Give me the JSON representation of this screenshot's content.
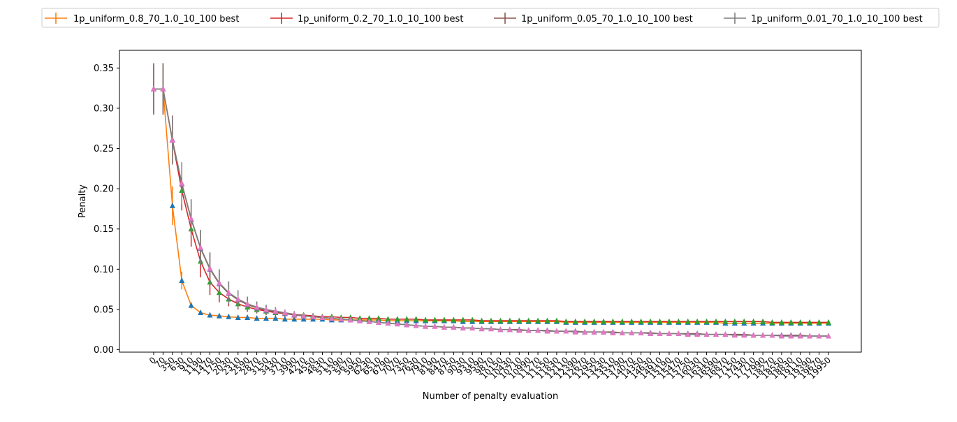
{
  "chart_data": {
    "type": "line",
    "title": "",
    "xlabel": "Number of penalty evaluation",
    "ylabel": "Penalty",
    "ylim": [
      -0.003,
      0.372
    ],
    "yticks": [
      0.0,
      0.05,
      0.1,
      0.15,
      0.2,
      0.25,
      0.3,
      0.35
    ],
    "ytick_labels": [
      "0.00",
      "0.05",
      "0.10",
      "0.15",
      "0.20",
      "0.25",
      "0.30",
      "0.35"
    ],
    "grid": false,
    "legend_position": "top",
    "x": [
      0,
      70,
      350,
      630,
      910,
      1190,
      1470,
      1750,
      2030,
      2310,
      2590,
      2870,
      3150,
      3430,
      3710,
      3990,
      4270,
      4550,
      4830,
      5110,
      5390,
      5670,
      5950,
      6230,
      6510,
      6790,
      7070,
      7350,
      7630,
      7910,
      8190,
      8470,
      8750,
      9030,
      9310,
      9590,
      9870,
      10150,
      10430,
      10710,
      10990,
      11270,
      11550,
      11830,
      12110,
      12390,
      12670,
      12950,
      13230,
      13510,
      13790,
      14070,
      14350,
      14630,
      14910,
      15190,
      15470,
      15750,
      16030,
      16310,
      16590,
      16870,
      17150,
      17430,
      17710,
      17990,
      18270,
      18550,
      18830,
      19110,
      19390,
      19670,
      19950
    ],
    "series": [
      {
        "name": "1p_uniform_0.8_70_1.0_10_100 best",
        "color": "#ff7f0e",
        "marker_color": "#1f77b4",
        "values": [
          0.324,
          0.324,
          0.179,
          0.086,
          0.055,
          0.046,
          0.043,
          0.042,
          0.041,
          0.04,
          0.04,
          0.039,
          0.039,
          0.039,
          0.038,
          0.038,
          0.038,
          0.038,
          0.038,
          0.037,
          0.037,
          0.037,
          0.037,
          0.037,
          0.037,
          0.036,
          0.036,
          0.036,
          0.036,
          0.036,
          0.036,
          0.036,
          0.036,
          0.035,
          0.035,
          0.035,
          0.035,
          0.035,
          0.035,
          0.035,
          0.035,
          0.035,
          0.035,
          0.035,
          0.034,
          0.034,
          0.034,
          0.034,
          0.034,
          0.034,
          0.034,
          0.034,
          0.034,
          0.034,
          0.034,
          0.034,
          0.034,
          0.034,
          0.034,
          0.034,
          0.034,
          0.033,
          0.033,
          0.033,
          0.033,
          0.033,
          0.033,
          0.033,
          0.033,
          0.033,
          0.033,
          0.033,
          0.033
        ],
        "errors": [
          0.03,
          0.03,
          0.024,
          0.011,
          0.004,
          0.003,
          0.003,
          0.003,
          0.003,
          0.003,
          0.003,
          0.003,
          0.003,
          0.003,
          0.003,
          0.003,
          0.002,
          0.002,
          0.002,
          0.002,
          0.002,
          0.002,
          0.002,
          0.002,
          0.002,
          0.002,
          0.002,
          0.002,
          0.002,
          0.002,
          0.002,
          0.002,
          0.002,
          0.002,
          0.002,
          0.002,
          0.002,
          0.002,
          0.002,
          0.002,
          0.002,
          0.002,
          0.002,
          0.002,
          0.002,
          0.002,
          0.002,
          0.002,
          0.002,
          0.002,
          0.002,
          0.002,
          0.002,
          0.002,
          0.002,
          0.002,
          0.002,
          0.002,
          0.002,
          0.002,
          0.002,
          0.002,
          0.002,
          0.002,
          0.002,
          0.002,
          0.002,
          0.002,
          0.002,
          0.002,
          0.002,
          0.002,
          0.002
        ]
      },
      {
        "name": "1p_uniform_0.2_70_1.0_10_100 best",
        "color": "#d62728",
        "marker_color": "#2ca02c",
        "values": [
          0.324,
          0.324,
          0.26,
          0.198,
          0.15,
          0.11,
          0.084,
          0.071,
          0.063,
          0.057,
          0.053,
          0.05,
          0.048,
          0.046,
          0.045,
          0.044,
          0.043,
          0.042,
          0.041,
          0.041,
          0.04,
          0.04,
          0.039,
          0.039,
          0.039,
          0.038,
          0.038,
          0.038,
          0.038,
          0.037,
          0.037,
          0.037,
          0.037,
          0.037,
          0.037,
          0.036,
          0.036,
          0.036,
          0.036,
          0.036,
          0.036,
          0.036,
          0.036,
          0.036,
          0.035,
          0.035,
          0.035,
          0.035,
          0.035,
          0.035,
          0.035,
          0.035,
          0.035,
          0.035,
          0.035,
          0.035,
          0.035,
          0.035,
          0.035,
          0.035,
          0.035,
          0.035,
          0.035,
          0.035,
          0.035,
          0.035,
          0.034,
          0.034,
          0.034,
          0.034,
          0.034,
          0.034,
          0.034
        ],
        "errors": [
          0.03,
          0.03,
          0.028,
          0.025,
          0.022,
          0.02,
          0.016,
          0.012,
          0.009,
          0.007,
          0.005,
          0.004,
          0.004,
          0.003,
          0.003,
          0.003,
          0.003,
          0.003,
          0.002,
          0.002,
          0.002,
          0.002,
          0.002,
          0.002,
          0.002,
          0.002,
          0.002,
          0.002,
          0.002,
          0.002,
          0.002,
          0.002,
          0.002,
          0.002,
          0.002,
          0.002,
          0.002,
          0.002,
          0.002,
          0.002,
          0.002,
          0.002,
          0.002,
          0.002,
          0.002,
          0.002,
          0.002,
          0.002,
          0.002,
          0.002,
          0.002,
          0.002,
          0.002,
          0.002,
          0.002,
          0.002,
          0.002,
          0.002,
          0.002,
          0.002,
          0.002,
          0.002,
          0.002,
          0.002,
          0.002,
          0.002,
          0.002,
          0.002,
          0.002,
          0.002,
          0.002,
          0.002,
          0.002
        ]
      },
      {
        "name": "1p_uniform_0.05_70_1.0_10_100 best",
        "color": "#8c564b",
        "marker_color": "#9467bd",
        "values": [
          0.324,
          0.324,
          0.261,
          0.206,
          0.162,
          0.126,
          0.1,
          0.082,
          0.07,
          0.062,
          0.056,
          0.052,
          0.049,
          0.047,
          0.045,
          0.043,
          0.042,
          0.041,
          0.04,
          0.039,
          0.038,
          0.037,
          0.036,
          0.035,
          0.034,
          0.033,
          0.032,
          0.031,
          0.03,
          0.029,
          0.029,
          0.028,
          0.028,
          0.027,
          0.027,
          0.026,
          0.026,
          0.025,
          0.025,
          0.025,
          0.024,
          0.024,
          0.024,
          0.023,
          0.023,
          0.023,
          0.022,
          0.022,
          0.022,
          0.022,
          0.021,
          0.021,
          0.021,
          0.021,
          0.02,
          0.02,
          0.02,
          0.02,
          0.02,
          0.019,
          0.019,
          0.019,
          0.019,
          0.019,
          0.018,
          0.018,
          0.018,
          0.018,
          0.018,
          0.018,
          0.017,
          0.017,
          0.017
        ],
        "errors": [
          0.032,
          0.032,
          0.03,
          0.026,
          0.024,
          0.022,
          0.02,
          0.017,
          0.014,
          0.011,
          0.009,
          0.007,
          0.006,
          0.005,
          0.004,
          0.004,
          0.003,
          0.003,
          0.003,
          0.003,
          0.003,
          0.003,
          0.002,
          0.002,
          0.002,
          0.002,
          0.002,
          0.002,
          0.002,
          0.002,
          0.002,
          0.002,
          0.002,
          0.002,
          0.002,
          0.002,
          0.002,
          0.002,
          0.002,
          0.002,
          0.002,
          0.002,
          0.002,
          0.002,
          0.002,
          0.002,
          0.002,
          0.002,
          0.002,
          0.002,
          0.002,
          0.002,
          0.002,
          0.002,
          0.002,
          0.002,
          0.002,
          0.002,
          0.002,
          0.002,
          0.002,
          0.002,
          0.002,
          0.002,
          0.002,
          0.002,
          0.002,
          0.002,
          0.002,
          0.002,
          0.002,
          0.002,
          0.002
        ]
      },
      {
        "name": "1p_uniform_0.01_70_1.0_10_100 best",
        "color": "#7f7f7f",
        "marker_color": "#e377c2",
        "values": [
          0.324,
          0.324,
          0.26,
          0.207,
          0.163,
          0.127,
          0.101,
          0.083,
          0.071,
          0.063,
          0.057,
          0.053,
          0.05,
          0.048,
          0.046,
          0.044,
          0.042,
          0.041,
          0.04,
          0.039,
          0.038,
          0.037,
          0.036,
          0.035,
          0.034,
          0.033,
          0.032,
          0.031,
          0.03,
          0.029,
          0.029,
          0.028,
          0.028,
          0.027,
          0.027,
          0.026,
          0.026,
          0.025,
          0.025,
          0.024,
          0.024,
          0.024,
          0.023,
          0.023,
          0.023,
          0.022,
          0.022,
          0.022,
          0.022,
          0.021,
          0.021,
          0.021,
          0.021,
          0.02,
          0.02,
          0.02,
          0.02,
          0.019,
          0.019,
          0.019,
          0.019,
          0.019,
          0.018,
          0.018,
          0.018,
          0.018,
          0.018,
          0.017,
          0.017,
          0.017,
          0.017,
          0.017,
          0.017
        ],
        "errors": [
          0.032,
          0.032,
          0.03,
          0.026,
          0.024,
          0.022,
          0.02,
          0.017,
          0.014,
          0.011,
          0.009,
          0.007,
          0.006,
          0.005,
          0.004,
          0.004,
          0.003,
          0.003,
          0.003,
          0.003,
          0.003,
          0.003,
          0.002,
          0.002,
          0.002,
          0.002,
          0.002,
          0.002,
          0.002,
          0.002,
          0.002,
          0.002,
          0.002,
          0.002,
          0.002,
          0.002,
          0.002,
          0.002,
          0.002,
          0.002,
          0.002,
          0.002,
          0.002,
          0.002,
          0.002,
          0.002,
          0.002,
          0.002,
          0.002,
          0.002,
          0.002,
          0.002,
          0.002,
          0.002,
          0.002,
          0.002,
          0.002,
          0.002,
          0.002,
          0.002,
          0.002,
          0.002,
          0.002,
          0.002,
          0.002,
          0.002,
          0.002,
          0.002,
          0.002,
          0.002,
          0.002,
          0.002,
          0.002
        ]
      }
    ]
  }
}
